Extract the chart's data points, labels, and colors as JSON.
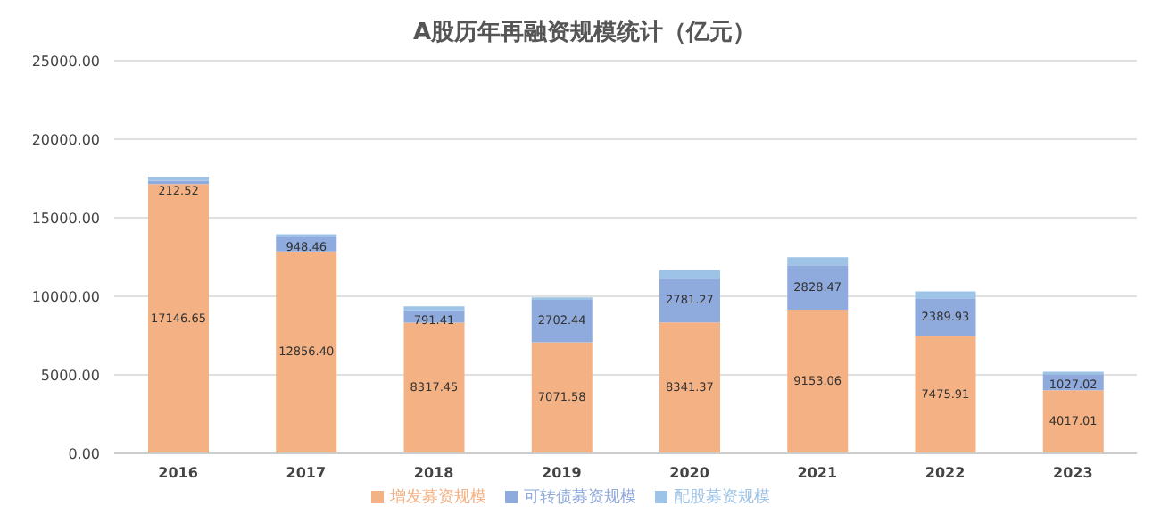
{
  "chart_data": {
    "type": "bar",
    "title": "A股历年再融资规模统计（亿元）",
    "stacked": true,
    "categories": [
      "2016",
      "2017",
      "2018",
      "2019",
      "2020",
      "2021",
      "2022",
      "2023"
    ],
    "series": [
      {
        "name": "增发募资规模",
        "color": "#f4b183",
        "values": [
          17146.65,
          12856.4,
          8317.45,
          7071.58,
          8341.37,
          9153.06,
          7475.91,
          4017.01
        ],
        "value_labels": [
          "17146.65",
          "12856.40",
          "8317.45",
          "7071.58",
          "8341.37",
          "9153.06",
          "7475.91",
          "4017.01"
        ]
      },
      {
        "name": "可转债募资规模",
        "color": "#8faadc",
        "values": [
          212.52,
          948.46,
          791.41,
          2702.44,
          2781.27,
          2828.47,
          2389.93,
          1027.02
        ],
        "value_labels": [
          "212.52",
          "948.46",
          "791.41",
          "2702.44",
          "2781.27",
          "2828.47",
          "2389.93",
          "1027.02"
        ]
      },
      {
        "name": "配股募资规模",
        "color": "#9dc3e6",
        "values": [
          250,
          150,
          250,
          150,
          550,
          500,
          450,
          150
        ]
      }
    ],
    "ylim": [
      0,
      25000
    ],
    "yticks": [
      {
        "value": 0,
        "label": "0.00"
      },
      {
        "value": 5000,
        "label": "5000.00"
      },
      {
        "value": 10000,
        "label": "10000.00"
      },
      {
        "value": 15000,
        "label": "15000.00"
      },
      {
        "value": 20000,
        "label": "20000.00"
      },
      {
        "value": 25000,
        "label": "25000.00"
      }
    ],
    "grid": "y",
    "legend": "bottom"
  }
}
